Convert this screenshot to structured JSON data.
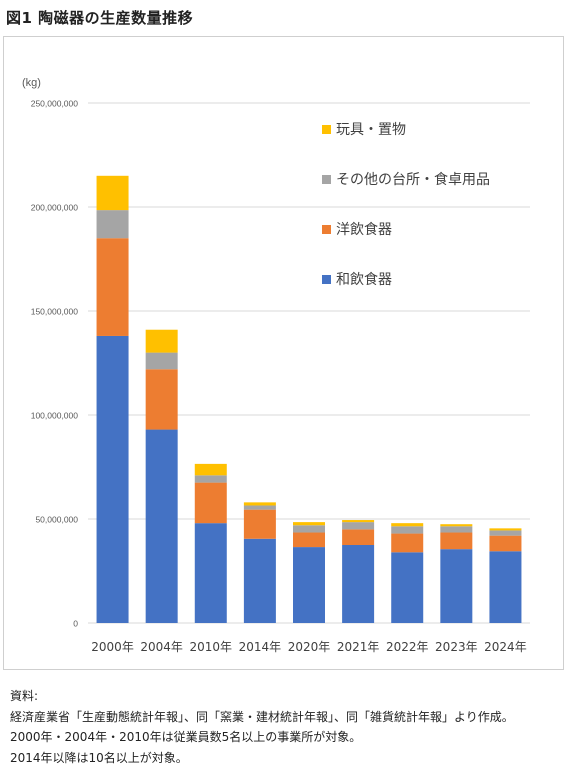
{
  "figure_title": "図1 陶磁器の生産数量推移",
  "notes": {
    "heading": "資料:",
    "lines": [
      "経済産業省「生産動態統計年報」、同「窯業・建材統計年報」、同「雑貨統計年報」より作成。",
      "2000年・2004年・2010年は従業員数5名以上の事業所が対象。",
      "2014年以降は10名以上が対象。"
    ]
  },
  "colors": {
    "wa": "#4472C4",
    "yo": "#ED7D31",
    "other": "#A5A5A5",
    "toy": "#FFC000",
    "grid": "#d9d9d9",
    "text": "#595959"
  },
  "chart_data": {
    "type": "bar",
    "stacked": true,
    "title": "",
    "ylabel": "(kg)",
    "xlabel": "",
    "ylim": [
      0,
      250000000
    ],
    "yticks": [
      0,
      50000000,
      100000000,
      150000000,
      200000000,
      250000000
    ],
    "ytick_labels": [
      "0",
      "50,000,000",
      "100,000,000",
      "150,000,000",
      "200,000,000",
      "250,000,000"
    ],
    "grid": true,
    "legend_position": "top-right",
    "categories": [
      "2000年",
      "2004年",
      "2010年",
      "2014年",
      "2020年",
      "2021年",
      "2022年",
      "2023年",
      "2024年"
    ],
    "series": [
      {
        "name": "和飲食器",
        "color": "#4472C4",
        "values": [
          138000000,
          93000000,
          48000000,
          40500000,
          36500000,
          37500000,
          34000000,
          35500000,
          34500000
        ]
      },
      {
        "name": "洋飲食器",
        "color": "#ED7D31",
        "values": [
          47000000,
          29000000,
          19500000,
          14000000,
          7000000,
          7500000,
          9000000,
          8000000,
          7500000
        ]
      },
      {
        "name": "その他の台所・食卓用品",
        "color": "#A5A5A5",
        "values": [
          13500000,
          8000000,
          3500000,
          2000000,
          3500000,
          3500000,
          3500000,
          3000000,
          2500000
        ]
      },
      {
        "name": "玩具・置物",
        "color": "#FFC000",
        "values": [
          16500000,
          11000000,
          5500000,
          1500000,
          1500000,
          1000000,
          1500000,
          1000000,
          1000000
        ]
      }
    ],
    "legend_order": [
      "玩具・置物",
      "その他の台所・食卓用品",
      "洋飲食器",
      "和飲食器"
    ]
  }
}
